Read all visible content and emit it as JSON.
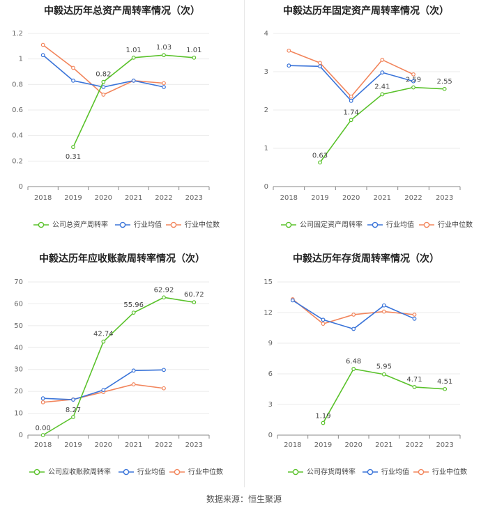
{
  "source": "数据来源：恒生聚源",
  "colors": {
    "company": "#5ac22b",
    "avg": "#3a74d9",
    "median": "#f2855c"
  },
  "chart_data": [
    {
      "type": "line",
      "title": "中毅达历年总资产周转率情况（次）",
      "categories": [
        "2018",
        "2019",
        "2020",
        "2021",
        "2022",
        "2023"
      ],
      "ylim": [
        0,
        1.2
      ],
      "yticks": [
        0,
        0.2,
        0.4,
        0.6,
        0.8,
        1,
        1.2
      ],
      "ytick_labels": [
        "0",
        "0.2",
        "0.4",
        "0.6",
        "0.8",
        "1",
        "1.2"
      ],
      "series": [
        {
          "name": "公司总资产周转率",
          "key": "company",
          "values": [
            null,
            0.31,
            0.82,
            1.01,
            1.03,
            1.01
          ],
          "labels": [
            null,
            "0.31",
            "0.82",
            "1.01",
            "1.03",
            "1.01"
          ]
        },
        {
          "name": "行业均值",
          "key": "avg",
          "values": [
            1.03,
            0.83,
            0.78,
            0.83,
            0.78,
            null
          ]
        },
        {
          "name": "行业中位数",
          "key": "median",
          "values": [
            1.11,
            0.93,
            0.72,
            0.83,
            0.81,
            null
          ]
        }
      ]
    },
    {
      "type": "line",
      "title": "中毅达历年固定资产周转率情况（次）",
      "categories": [
        "2018",
        "2019",
        "2020",
        "2021",
        "2022",
        "2023"
      ],
      "ylim": [
        0,
        4
      ],
      "yticks": [
        0,
        1,
        2,
        3,
        4
      ],
      "ytick_labels": [
        "0",
        "1",
        "2",
        "3",
        "4"
      ],
      "series": [
        {
          "name": "公司固定资产周转率",
          "key": "company",
          "values": [
            null,
            0.63,
            1.74,
            2.41,
            2.59,
            2.55
          ],
          "labels": [
            null,
            "0.63",
            "1.74",
            "2.41",
            "2.59",
            "2.55"
          ]
        },
        {
          "name": "行业均值",
          "key": "avg",
          "values": [
            3.16,
            3.14,
            2.24,
            2.98,
            2.75,
            null
          ]
        },
        {
          "name": "行业中位数",
          "key": "median",
          "values": [
            3.55,
            3.23,
            2.35,
            3.31,
            2.93,
            null
          ]
        }
      ]
    },
    {
      "type": "line",
      "title": "中毅达历年应收账款周转率情况（次）",
      "categories": [
        "2018",
        "2019",
        "2020",
        "2021",
        "2022",
        "2023"
      ],
      "ylim": [
        0,
        70
      ],
      "yticks": [
        0,
        10,
        20,
        30,
        40,
        50,
        60,
        70
      ],
      "ytick_labels": [
        "0",
        "10",
        "20",
        "30",
        "40",
        "50",
        "60",
        "70"
      ],
      "series": [
        {
          "name": "公司应收账款周转率",
          "key": "company",
          "values": [
            0.0,
            8.27,
            42.74,
            55.96,
            62.92,
            60.72
          ],
          "labels": [
            "0.00",
            "8.27",
            "42.74",
            "55.96",
            "62.92",
            "60.72"
          ]
        },
        {
          "name": "行业均值",
          "key": "avg",
          "values": [
            16.8,
            16.2,
            20.6,
            29.5,
            29.8,
            null
          ]
        },
        {
          "name": "行业中位数",
          "key": "median",
          "values": [
            15.0,
            16.3,
            19.7,
            23.2,
            21.4,
            null
          ]
        }
      ]
    },
    {
      "type": "line",
      "title": "中毅达历年存货周转率情况（次）",
      "categories": [
        "2018",
        "2019",
        "2020",
        "2021",
        "2022",
        "2023"
      ],
      "ylim": [
        0,
        15
      ],
      "yticks": [
        0,
        3,
        6,
        9,
        12,
        15
      ],
      "ytick_labels": [
        "0",
        "3",
        "6",
        "9",
        "12",
        "15"
      ],
      "series": [
        {
          "name": "公司存货周转率",
          "key": "company",
          "values": [
            null,
            1.19,
            6.48,
            5.95,
            4.71,
            4.51
          ],
          "labels": [
            null,
            "1.19",
            "6.48",
            "5.95",
            "4.71",
            "4.51"
          ]
        },
        {
          "name": "行业均值",
          "key": "avg",
          "values": [
            13.2,
            11.3,
            10.4,
            12.7,
            11.4,
            null
          ]
        },
        {
          "name": "行业中位数",
          "key": "median",
          "values": [
            13.3,
            10.9,
            11.8,
            12.1,
            11.8,
            null
          ]
        }
      ]
    }
  ]
}
